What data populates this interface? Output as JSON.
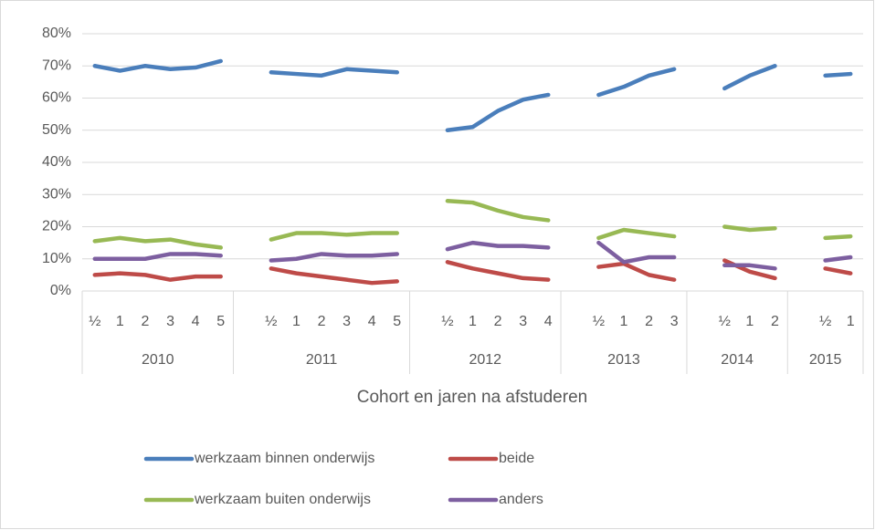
{
  "chart_data": {
    "type": "line",
    "x_axis_title": "Cohort en jaren na afstuderen",
    "groups": [
      {
        "label": "2010",
        "categories": [
          "½",
          "1",
          "2",
          "3",
          "4",
          "5"
        ]
      },
      {
        "label": "2011",
        "categories": [
          null,
          "½",
          "1",
          "2",
          "3",
          "4",
          "5"
        ]
      },
      {
        "label": "2012",
        "categories": [
          null,
          "½",
          "1",
          "2",
          "3",
          "4"
        ]
      },
      {
        "label": "2013",
        "categories": [
          null,
          "½",
          "1",
          "2",
          "3"
        ]
      },
      {
        "label": "2014",
        "categories": [
          null,
          "½",
          "1",
          "2"
        ]
      },
      {
        "label": "2015",
        "categories": [
          null,
          "½",
          "1"
        ]
      }
    ],
    "series": [
      {
        "name": "werkzaam binnen onderwijs",
        "color": "#4a7ebb",
        "values": [
          70,
          68.5,
          70,
          69,
          69.5,
          71.5,
          null,
          68,
          67.5,
          67,
          69,
          68.5,
          68,
          null,
          50,
          51,
          56,
          59.5,
          61,
          null,
          61,
          63.5,
          67,
          69,
          null,
          63,
          67,
          70,
          null,
          67,
          67.5
        ]
      },
      {
        "name": "beide",
        "color": "#be4b48",
        "values": [
          5,
          5.5,
          5,
          3.5,
          4.5,
          4.5,
          null,
          7,
          5.5,
          4.5,
          3.5,
          2.5,
          3,
          null,
          9,
          7,
          5.5,
          4,
          3.5,
          null,
          7.5,
          8.5,
          5,
          3.5,
          null,
          9.5,
          6,
          4,
          null,
          7,
          5.5
        ]
      },
      {
        "name": "werkzaam buiten onderwijs",
        "color": "#98b954",
        "values": [
          15.5,
          16.5,
          15.5,
          16,
          14.5,
          13.5,
          null,
          16,
          18,
          18,
          17.5,
          18,
          18,
          null,
          28,
          27.5,
          25,
          23,
          22,
          null,
          16.5,
          19,
          18,
          17,
          null,
          20,
          19,
          19.5,
          null,
          16.5,
          17
        ]
      },
      {
        "name": "anders",
        "color": "#7d5fa0",
        "values": [
          10,
          10,
          10,
          11.5,
          11.5,
          11,
          null,
          9.5,
          10,
          11.5,
          11,
          11,
          11.5,
          null,
          13,
          15,
          14,
          14,
          13.5,
          null,
          15,
          9,
          10.5,
          10.5,
          null,
          8,
          8,
          7,
          null,
          9.5,
          10.5
        ]
      }
    ],
    "ylim": [
      0,
      80
    ],
    "yticks": [
      {
        "value": 0,
        "label": "0%"
      },
      {
        "value": 10,
        "label": "10%"
      },
      {
        "value": 20,
        "label": "20%"
      },
      {
        "value": 30,
        "label": "30%"
      },
      {
        "value": 40,
        "label": "40%"
      },
      {
        "value": 50,
        "label": "50%"
      },
      {
        "value": 60,
        "label": "60%"
      },
      {
        "value": 70,
        "label": "70%"
      },
      {
        "value": 80,
        "label": "80%"
      }
    ],
    "grid": true
  }
}
